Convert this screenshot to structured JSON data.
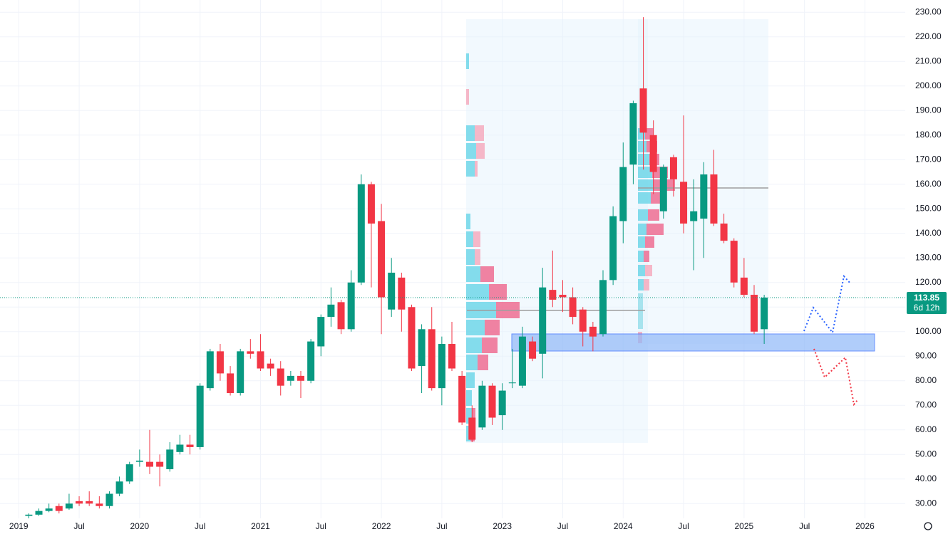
{
  "chart_data": {
    "type": "candlestick",
    "up_color": "#089981",
    "down_color": "#f23645",
    "grid": true,
    "x": [
      "2019-02",
      "2019-03",
      "2019-04",
      "2019-05",
      "2019-06",
      "2019-07",
      "2019-08",
      "2019-09",
      "2019-10",
      "2019-11",
      "2019-12",
      "2020-01",
      "2020-02",
      "2020-03",
      "2020-04",
      "2020-05",
      "2020-06",
      "2020-07",
      "2020-08",
      "2020-09",
      "2020-10",
      "2020-11",
      "2020-12",
      "2021-01",
      "2021-02",
      "2021-03",
      "2021-04",
      "2021-05",
      "2021-06",
      "2021-07",
      "2021-08",
      "2021-09",
      "2021-10",
      "2021-11",
      "2021-12",
      "2022-01",
      "2022-02",
      "2022-03",
      "2022-04",
      "2022-05",
      "2022-06",
      "2022-07",
      "2022-08",
      "2022-09",
      "2022-10",
      "2022-11",
      "2022-12",
      "2023-01",
      "2023-02",
      "2023-03",
      "2023-04",
      "2023-05",
      "2023-06",
      "2023-07",
      "2023-08",
      "2023-09",
      "2023-10",
      "2023-11",
      "2023-12",
      "2024-01",
      "2024-02",
      "2024-03",
      "2024-04",
      "2024-05",
      "2024-06",
      "2024-07",
      "2024-08",
      "2024-09",
      "2024-10",
      "2024-11",
      "2024-12",
      "2025-01",
      "2025-02",
      "2025-03"
    ],
    "open": [
      25,
      25.5,
      27,
      29,
      28,
      31,
      31,
      30,
      29,
      34,
      39,
      47,
      47,
      47,
      44,
      51,
      54,
      53,
      77,
      92,
      83,
      75,
      92,
      92,
      87,
      85,
      80,
      82,
      80,
      94,
      106,
      112,
      101,
      120,
      160,
      145,
      109,
      122,
      110,
      86,
      101,
      77,
      95,
      82,
      65,
      61,
      78,
      66,
      79,
      78,
      96,
      91,
      117,
      115,
      114,
      109,
      102,
      99,
      121,
      145,
      168,
      199,
      180,
      149,
      171,
      161,
      145,
      146,
      164,
      144,
      137,
      122,
      115,
      101
    ],
    "high": [
      26,
      28,
      30,
      30,
      34,
      33,
      35,
      33,
      35,
      41,
      47,
      52,
      60,
      50,
      55,
      58,
      58,
      79,
      93,
      95,
      86,
      93,
      97,
      99,
      89,
      88,
      84,
      84,
      97,
      107,
      118,
      113,
      125,
      164,
      161,
      152,
      130,
      124,
      111,
      103,
      110,
      98,
      104,
      84,
      70,
      80,
      79,
      79,
      93,
      102,
      98,
      126,
      133,
      121,
      118,
      110,
      104,
      125,
      151,
      177,
      194,
      228,
      186,
      168,
      172,
      188,
      162,
      169,
      174,
      148,
      138,
      130,
      119,
      115
    ],
    "low": [
      24,
      25,
      26.5,
      26,
      27.5,
      29,
      29,
      28,
      28,
      33,
      38,
      45,
      42,
      37,
      43,
      50,
      50,
      52,
      76,
      80,
      74,
      74,
      89,
      84,
      82,
      74,
      78,
      73,
      79,
      90,
      102,
      99,
      100,
      119,
      118,
      99,
      106,
      100,
      84,
      75,
      76,
      70,
      84,
      62,
      55,
      60,
      62,
      60,
      77,
      77,
      88,
      81,
      110,
      108,
      103,
      94,
      92,
      98,
      119,
      136,
      160,
      166,
      156,
      146,
      155,
      140,
      125,
      130,
      143,
      136,
      118,
      114,
      99,
      95
    ],
    "close": [
      25.5,
      27,
      28,
      27,
      30,
      30,
      30,
      29,
      34,
      39,
      46,
      47.5,
      45,
      45,
      52,
      54,
      53,
      78,
      92,
      83,
      75,
      92,
      91,
      85,
      85,
      78,
      82,
      80,
      96,
      106,
      111,
      101,
      120,
      160,
      144,
      114,
      124,
      109,
      85,
      101,
      77,
      95,
      85,
      63,
      56,
      78,
      65,
      76,
      79.3,
      98,
      89,
      118,
      113,
      114,
      106,
      100,
      98,
      121,
      147,
      167,
      193,
      181,
      165,
      167,
      162,
      144,
      149,
      164,
      144,
      137,
      120,
      115,
      100,
      113.85
    ],
    "last_price": 113.85,
    "countdown": "6d 12h",
    "xlim": [
      "2018-11",
      "2026-05"
    ],
    "xticks": [
      {
        "value": "2019-01",
        "label": "2019"
      },
      {
        "value": "2019-07",
        "label": "Jul"
      },
      {
        "value": "2020-01",
        "label": "2020"
      },
      {
        "value": "2020-07",
        "label": "Jul"
      },
      {
        "value": "2021-01",
        "label": "2021"
      },
      {
        "value": "2021-07",
        "label": "Jul"
      },
      {
        "value": "2022-01",
        "label": "2022"
      },
      {
        "value": "2022-07",
        "label": "Jul"
      },
      {
        "value": "2023-01",
        "label": "2023"
      },
      {
        "value": "2023-07",
        "label": "Jul"
      },
      {
        "value": "2024-01",
        "label": "2024"
      },
      {
        "value": "2024-07",
        "label": "Jul"
      },
      {
        "value": "2025-01",
        "label": "2025"
      },
      {
        "value": "2025-07",
        "label": "Jul"
      },
      {
        "value": "2026-01",
        "label": "2026"
      }
    ],
    "ylim": [
      24,
      235
    ],
    "yticks": [
      {
        "value": 30,
        "label": "30.00"
      },
      {
        "value": 40,
        "label": "40.00"
      },
      {
        "value": 50,
        "label": "50.00"
      },
      {
        "value": 60,
        "label": "60.00"
      },
      {
        "value": 70,
        "label": "70.00"
      },
      {
        "value": 80,
        "label": "80.00"
      },
      {
        "value": 90,
        "label": "90.00"
      },
      {
        "value": 100,
        "label": "100.00"
      },
      {
        "value": 110,
        "label": "110.00"
      },
      {
        "value": 120,
        "label": "120.00"
      },
      {
        "value": 130,
        "label": "130.00"
      },
      {
        "value": 140,
        "label": "140.00"
      },
      {
        "value": 150,
        "label": "150.00"
      },
      {
        "value": 160,
        "label": "160.00"
      },
      {
        "value": 170,
        "label": "170.00"
      },
      {
        "value": 180,
        "label": "180.00"
      },
      {
        "value": 190,
        "label": "190.00"
      },
      {
        "value": 200,
        "label": "200.00"
      },
      {
        "value": 210,
        "label": "210.00"
      },
      {
        "value": 220,
        "label": "220.00"
      },
      {
        "value": 230,
        "label": "230.00"
      }
    ]
  }
}
